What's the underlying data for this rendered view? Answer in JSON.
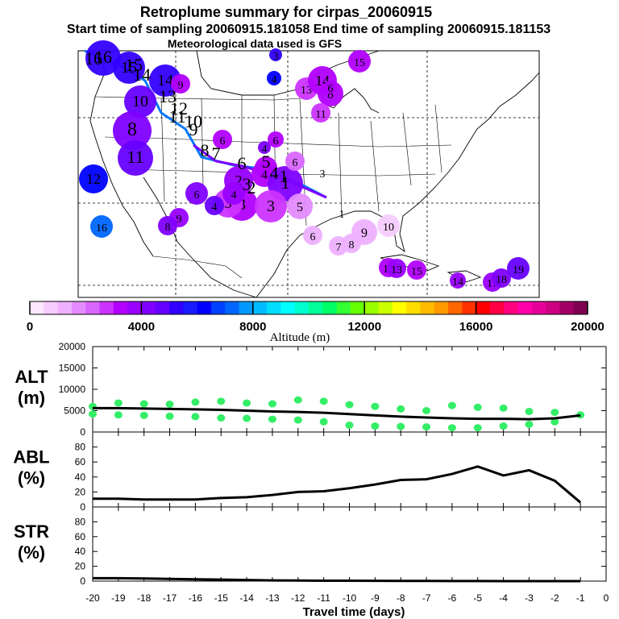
{
  "header": {
    "title": "Retroplume summary for cirpas_20060915",
    "sampling": "Start time of sampling 20060915.181058     End time of sampling 20060915.181153",
    "met": "Meteorological data used is GFS"
  },
  "colorbar": {
    "label": "Altitude (m)",
    "ticks": [
      "0",
      "4000",
      "8000",
      "12000",
      "16000",
      "20000"
    ],
    "colors": [
      "#ffe6ff",
      "#f7ccff",
      "#eeb0ff",
      "#e48cff",
      "#d966ff",
      "#cc33ff",
      "#b300ff",
      "#9900ff",
      "#8000ff",
      "#6600ff",
      "#3300ff",
      "#1a1aff",
      "#0000ff",
      "#0040ff",
      "#0066ff",
      "#0099ff",
      "#00bbff",
      "#00ddff",
      "#00ffff",
      "#00ffcc",
      "#00ff99",
      "#00ff66",
      "#33ff33",
      "#66ff00",
      "#99ff00",
      "#ccff00",
      "#ffff00",
      "#ffdd00",
      "#ffbb00",
      "#ff9900",
      "#ff6600",
      "#ff3300",
      "#ff0000",
      "#ff0044",
      "#ff0080",
      "#ff00aa",
      "#e60099",
      "#cc0080",
      "#a30066",
      "#800050"
    ]
  },
  "map": {
    "clusters": [
      {
        "label": "16",
        "alt": 5000
      },
      {
        "label": "15",
        "alt": 5000
      },
      {
        "label": "14",
        "alt": 5200
      },
      {
        "label": "10",
        "alt": 4800
      },
      {
        "label": "8",
        "alt": 4400
      },
      {
        "label": "11",
        "alt": 4600
      },
      {
        "label": "9",
        "alt": 3200
      },
      {
        "label": "12",
        "alt": 6200
      },
      {
        "label": "16",
        "alt": 7200
      },
      {
        "label": "6",
        "alt": 4400
      },
      {
        "label": "9",
        "alt": 3800
      },
      {
        "label": "8",
        "alt": 4000
      },
      {
        "label": "6",
        "alt": 3000
      },
      {
        "label": "6",
        "alt": 3400
      },
      {
        "label": "5",
        "alt": 3000
      },
      {
        "label": "4",
        "alt": 3200
      },
      {
        "label": "2",
        "alt": 3800
      },
      {
        "label": "1",
        "alt": 4400
      },
      {
        "label": "3",
        "alt": 3400
      },
      {
        "label": "3",
        "alt": 2800
      },
      {
        "label": "3",
        "alt": 2600
      },
      {
        "label": "4",
        "alt": 4600
      },
      {
        "label": "4",
        "alt": 3800
      },
      {
        "label": "5",
        "alt": 1600
      },
      {
        "label": "6",
        "alt": 1400
      },
      {
        "label": "7",
        "alt": 1000
      },
      {
        "label": "8",
        "alt": 1000
      },
      {
        "label": "9",
        "alt": 1000
      },
      {
        "label": "10",
        "alt": 800
      },
      {
        "label": "12",
        "alt": 3400
      },
      {
        "label": "13",
        "alt": 3800
      },
      {
        "label": "15",
        "alt": 3400
      },
      {
        "label": "14",
        "alt": 3800
      },
      {
        "label": "17",
        "alt": 3600
      },
      {
        "label": "18",
        "alt": 4400
      },
      {
        "label": "19",
        "alt": 4800
      },
      {
        "label": "8",
        "alt": 3000
      },
      {
        "label": "4",
        "alt": 6200
      },
      {
        "label": "13",
        "alt": 2800
      },
      {
        "label": "14",
        "alt": 3400
      },
      {
        "label": "11",
        "alt": 2600
      },
      {
        "label": "15",
        "alt": 3000
      },
      {
        "label": "6",
        "alt": 2000
      },
      {
        "label": "4",
        "alt": 4400
      },
      {
        "label": "3",
        "alt": 5000
      },
      {
        "label": "6",
        "alt": 3200
      },
      {
        "label": "1",
        "alt": 0
      },
      {
        "label": "3",
        "alt": 0
      }
    ],
    "track_labels": [
      "16",
      "15",
      "14",
      "13",
      "12",
      "11",
      "10",
      "9",
      "8",
      "7",
      "6",
      "5",
      "4",
      "3",
      "2",
      "1"
    ]
  },
  "chart_data": [
    {
      "type": "scatter",
      "panel": "ALT",
      "ylabel": "ALT\n(m)",
      "ylabel_lines": [
        "ALT",
        "(m)"
      ],
      "xlabel": "Travel time (days)",
      "xlim": [
        -20,
        0
      ],
      "ylim": [
        0,
        20000
      ],
      "yticks": [
        "20000",
        "15000",
        "10000",
        "5000",
        "0"
      ],
      "xticks": [
        "-20",
        "-19",
        "-18",
        "-17",
        "-16",
        "-15",
        "-14",
        "-13",
        "-12",
        "-11",
        "-10",
        "-9",
        "-8",
        "-7",
        "-6",
        "-5",
        "-4",
        "-3",
        "-2",
        "-1",
        "0"
      ],
      "line": {
        "name": "mean altitude",
        "x": [
          -20,
          -19,
          -18,
          -17,
          -16,
          -15,
          -14,
          -13,
          -12,
          -11,
          -10,
          -9,
          -8,
          -7,
          -6,
          -5,
          -4,
          -3,
          -2,
          -1
        ],
        "y": [
          5600,
          5600,
          5500,
          5400,
          5300,
          5200,
          5000,
          4800,
          4700,
          4500,
          4200,
          3900,
          3600,
          3400,
          3200,
          3100,
          3100,
          3000,
          3200,
          3900
        ]
      },
      "scatter": [
        {
          "x": -20,
          "y": 6000
        },
        {
          "x": -20,
          "y": 4200
        },
        {
          "x": -19,
          "y": 6800
        },
        {
          "x": -19,
          "y": 4000
        },
        {
          "x": -18,
          "y": 6600
        },
        {
          "x": -18,
          "y": 3900
        },
        {
          "x": -17,
          "y": 6500
        },
        {
          "x": -17,
          "y": 3700
        },
        {
          "x": -16,
          "y": 7000
        },
        {
          "x": -16,
          "y": 3600
        },
        {
          "x": -15,
          "y": 7200
        },
        {
          "x": -15,
          "y": 3300
        },
        {
          "x": -14,
          "y": 6800
        },
        {
          "x": -14,
          "y": 3200
        },
        {
          "x": -13,
          "y": 6600
        },
        {
          "x": -13,
          "y": 3000
        },
        {
          "x": -12,
          "y": 7500
        },
        {
          "x": -12,
          "y": 2800
        },
        {
          "x": -11,
          "y": 7200
        },
        {
          "x": -11,
          "y": 2400
        },
        {
          "x": -10,
          "y": 6400
        },
        {
          "x": -10,
          "y": 1600
        },
        {
          "x": -9,
          "y": 6000
        },
        {
          "x": -9,
          "y": 1400
        },
        {
          "x": -8,
          "y": 5400
        },
        {
          "x": -8,
          "y": 1300
        },
        {
          "x": -7,
          "y": 5000
        },
        {
          "x": -7,
          "y": 1200
        },
        {
          "x": -6,
          "y": 6200
        },
        {
          "x": -6,
          "y": 1000
        },
        {
          "x": -5,
          "y": 5800
        },
        {
          "x": -5,
          "y": 1000
        },
        {
          "x": -4,
          "y": 5600
        },
        {
          "x": -4,
          "y": 1400
        },
        {
          "x": -3,
          "y": 4800
        },
        {
          "x": -3,
          "y": 1800
        },
        {
          "x": -2,
          "y": 4600
        },
        {
          "x": -2,
          "y": 2400
        },
        {
          "x": -1,
          "y": 4000
        }
      ],
      "marker_color": "#33ee66"
    },
    {
      "type": "line",
      "panel": "ABL",
      "ylabel": "ABL\n(%)",
      "ylabel_lines": [
        "ABL",
        "(%)"
      ],
      "xlim": [
        -20,
        0
      ],
      "ylim": [
        0,
        100
      ],
      "yticks": [
        "80",
        "60",
        "40",
        "20",
        "0"
      ],
      "x": [
        -20,
        -19,
        -18,
        -17,
        -16,
        -15,
        -14,
        -13,
        -12,
        -11,
        -10,
        -9,
        -8,
        -7,
        -6,
        -5,
        -4,
        -3,
        -2,
        -1
      ],
      "y": [
        11,
        11,
        10,
        10,
        10,
        12,
        13,
        16,
        20,
        21,
        25,
        30,
        36,
        37,
        44,
        54,
        42,
        49,
        35,
        6
      ]
    },
    {
      "type": "line",
      "panel": "STR",
      "ylabel": "STR\n(%)",
      "ylabel_lines": [
        "STR",
        "(%)"
      ],
      "xlim": [
        -20,
        0
      ],
      "ylim": [
        0,
        100
      ],
      "yticks": [
        "80",
        "60",
        "40",
        "20",
        "0"
      ],
      "x": [
        -20,
        -19,
        -18,
        -17,
        -16,
        -15,
        -14,
        -13,
        -12,
        -11,
        -10,
        -9,
        -8,
        -7,
        -6,
        -5,
        -4,
        -3,
        -2,
        -1
      ],
      "y": [
        4,
        4,
        3.5,
        3,
        2.5,
        2,
        1.5,
        1,
        0.8,
        0.6,
        0.5,
        0.4,
        0.3,
        0.3,
        0.2,
        0.2,
        0,
        0,
        0,
        0
      ]
    }
  ]
}
